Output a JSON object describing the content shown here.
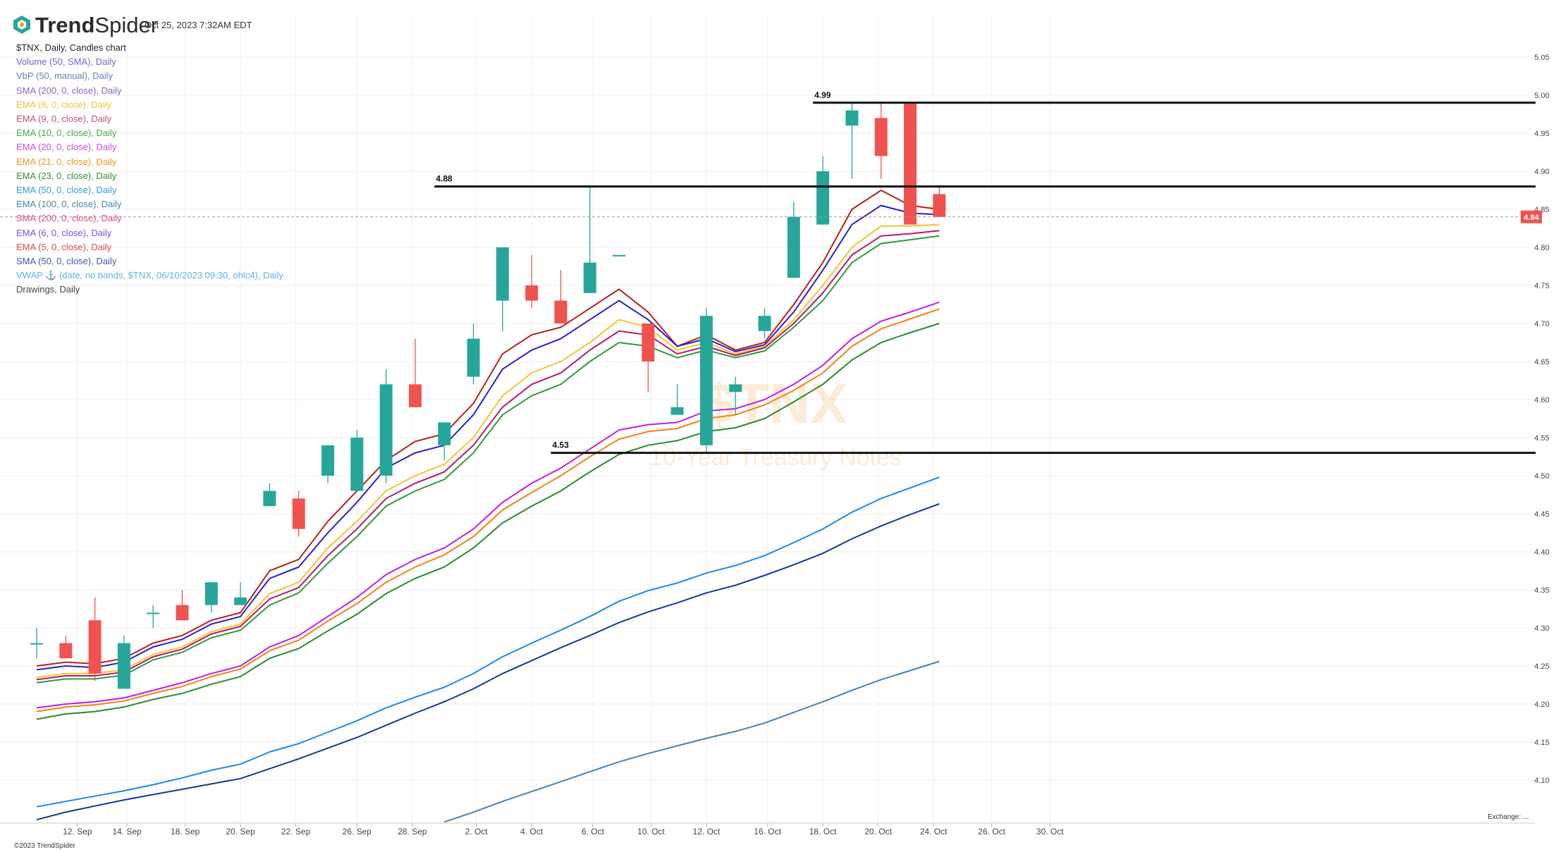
{
  "header": {
    "brand_bold": "Trend",
    "brand_regular": "Spider",
    "timestamp": "Oct 25, 2023 7:32AM EDT"
  },
  "legend": {
    "title": "$TNX, Daily, Candles chart",
    "items": [
      {
        "label": "Volume (50, SMA), Daily",
        "color": "#7b5bd6"
      },
      {
        "label": "VbP (50, manual), Daily",
        "color": "#6a7fb0"
      },
      {
        "label": "SMA (200, 0, close), Daily",
        "color": "#8a63b8"
      },
      {
        "label": "EMA (8, 0, close), Daily",
        "color": "#f2c43d"
      },
      {
        "label": "EMA (9, 0, close), Daily",
        "color": "#c0507a"
      },
      {
        "label": "EMA (10, 0, close), Daily",
        "color": "#4aa84a"
      },
      {
        "label": "EMA (20, 0, close), Daily",
        "color": "#c74fd6"
      },
      {
        "label": "EMA (21, 0, close), Daily",
        "color": "#f0941f"
      },
      {
        "label": "EMA (23, 0, close), Daily",
        "color": "#3a8a3a"
      },
      {
        "label": "EMA (50, 0, close), Daily",
        "color": "#2b9be3"
      },
      {
        "label": "EMA (100, 0, close), Daily",
        "color": "#4a86b0"
      },
      {
        "label": "SMA (200, 0, close), Daily",
        "color": "#d05080"
      },
      {
        "label": "EMA (6, 0, close), Daily",
        "color": "#7a4fd0"
      },
      {
        "label": "EMA (5, 0, close), Daily",
        "color": "#d0504a"
      },
      {
        "label": "SMA (50, 0, close), Daily",
        "color": "#3a5aa8"
      },
      {
        "label": "VWAP ⚓ (date, no bands, $TNX, 06/10/2023 09:30, ohlc4), Daily",
        "color": "#5ab4e0"
      },
      {
        "label": "Drawings, Daily",
        "color": "#444444"
      }
    ]
  },
  "watermark": {
    "symbol": "$TNX",
    "name": "10-Year Treasury Notes"
  },
  "footer": {
    "exchange": "Exchange: ...",
    "copyright": "©2023 TrendSpider"
  },
  "colors": {
    "up": "#26a69a",
    "down": "#ef5350",
    "current_price_bg": "#ef5350"
  },
  "chart_data": {
    "type": "candlestick",
    "symbol": "$TNX",
    "interval": "Daily",
    "ylim": [
      4.05,
      5.05
    ],
    "y_ticks": [
      "4.10",
      "4.15",
      "4.20",
      "4.25",
      "4.30",
      "4.35",
      "4.40",
      "4.45",
      "4.50",
      "4.55",
      "4.60",
      "4.65",
      "4.70",
      "4.75",
      "4.80",
      "4.85",
      "4.90",
      "4.95",
      "5.00",
      "5.05"
    ],
    "x_ticks": [
      "12. Sep",
      "14. Sep",
      "18. Sep",
      "20. Sep",
      "22. Sep",
      "26. Sep",
      "28. Sep",
      "2. Oct",
      "4. Oct",
      "6. Oct",
      "10. Oct",
      "12. Oct",
      "16. Oct",
      "18. Oct",
      "20. Oct",
      "24. Oct",
      "26. Oct",
      "30. Oct"
    ],
    "current_price": "4.84",
    "grid": true,
    "candles": [
      {
        "date": "11 Sep",
        "o": 4.28,
        "h": 4.3,
        "l": 4.26,
        "c": 4.28
      },
      {
        "date": "12 Sep",
        "o": 4.28,
        "h": 4.29,
        "l": 4.26,
        "c": 4.26
      },
      {
        "date": "13 Sep",
        "o": 4.31,
        "h": 4.34,
        "l": 4.23,
        "c": 4.24
      },
      {
        "date": "14 Sep",
        "o": 4.22,
        "h": 4.29,
        "l": 4.22,
        "c": 4.28
      },
      {
        "date": "15 Sep",
        "o": 4.32,
        "h": 4.33,
        "l": 4.3,
        "c": 4.32
      },
      {
        "date": "18 Sep",
        "o": 4.33,
        "h": 4.35,
        "l": 4.31,
        "c": 4.31
      },
      {
        "date": "19 Sep",
        "o": 4.33,
        "h": 4.36,
        "l": 4.32,
        "c": 4.36
      },
      {
        "date": "20 Sep",
        "o": 4.33,
        "h": 4.36,
        "l": 4.33,
        "c": 4.34
      },
      {
        "date": "21 Sep",
        "o": 4.46,
        "h": 4.49,
        "l": 4.46,
        "c": 4.48
      },
      {
        "date": "22 Sep",
        "o": 4.47,
        "h": 4.48,
        "l": 4.42,
        "c": 4.43
      },
      {
        "date": "25 Sep",
        "o": 4.5,
        "h": 4.54,
        "l": 4.49,
        "c": 4.54
      },
      {
        "date": "26 Sep",
        "o": 4.48,
        "h": 4.56,
        "l": 4.48,
        "c": 4.55
      },
      {
        "date": "27 Sep",
        "o": 4.5,
        "h": 4.64,
        "l": 4.49,
        "c": 4.62
      },
      {
        "date": "28 Sep",
        "o": 4.62,
        "h": 4.68,
        "l": 4.59,
        "c": 4.59
      },
      {
        "date": "29 Sep",
        "o": 4.54,
        "h": 4.57,
        "l": 4.52,
        "c": 4.57
      },
      {
        "date": "2 Oct",
        "o": 4.63,
        "h": 4.7,
        "l": 4.62,
        "c": 4.68
      },
      {
        "date": "3 Oct",
        "o": 4.73,
        "h": 4.8,
        "l": 4.69,
        "c": 4.8
      },
      {
        "date": "4 Oct",
        "o": 4.75,
        "h": 4.79,
        "l": 4.72,
        "c": 4.73
      },
      {
        "date": "5 Oct",
        "o": 4.73,
        "h": 4.77,
        "l": 4.7,
        "c": 4.7
      },
      {
        "date": "6 Oct",
        "o": 4.74,
        "h": 4.88,
        "l": 4.74,
        "c": 4.78
      },
      {
        "date": "9 Oct",
        "o": 4.79,
        "h": 4.79,
        "l": 4.79,
        "c": 4.79
      },
      {
        "date": "10 Oct",
        "o": 4.7,
        "h": 4.7,
        "l": 4.61,
        "c": 4.65
      },
      {
        "date": "11 Oct",
        "o": 4.58,
        "h": 4.62,
        "l": 4.58,
        "c": 4.59
      },
      {
        "date": "12 Oct",
        "o": 4.54,
        "h": 4.72,
        "l": 4.53,
        "c": 4.71
      },
      {
        "date": "13 Oct",
        "o": 4.61,
        "h": 4.63,
        "l": 4.58,
        "c": 4.62
      },
      {
        "date": "16 Oct",
        "o": 4.69,
        "h": 4.72,
        "l": 4.68,
        "c": 4.71
      },
      {
        "date": "17 Oct",
        "o": 4.76,
        "h": 4.86,
        "l": 4.76,
        "c": 4.84
      },
      {
        "date": "18 Oct",
        "o": 4.83,
        "h": 4.92,
        "l": 4.83,
        "c": 4.9
      },
      {
        "date": "19 Oct",
        "o": 4.96,
        "h": 4.99,
        "l": 4.89,
        "c": 4.98
      },
      {
        "date": "20 Oct",
        "o": 4.97,
        "h": 4.99,
        "l": 4.89,
        "c": 4.92
      },
      {
        "date": "23 Oct",
        "o": 4.99,
        "h": 4.99,
        "l": 4.83,
        "c": 4.83
      },
      {
        "date": "24 Oct",
        "o": 4.87,
        "h": 4.88,
        "l": 4.84,
        "c": 4.84
      }
    ],
    "horizontal_levels": [
      {
        "value": 4.99,
        "label": "4.99",
        "from": "18 Oct"
      },
      {
        "value": 4.88,
        "label": "4.88",
        "from": "29 Sep"
      },
      {
        "value": 4.53,
        "label": "4.53",
        "from": "5 Oct"
      }
    ],
    "series": [
      {
        "color": "#b5201c",
        "values": [
          4.25,
          4.255,
          4.253,
          4.26,
          4.28,
          4.29,
          4.31,
          4.32,
          4.375,
          4.39,
          4.44,
          4.48,
          4.52,
          4.545,
          4.555,
          4.595,
          4.66,
          4.685,
          4.695,
          4.72,
          4.745,
          4.715,
          4.67,
          4.685,
          4.665,
          4.675,
          4.725,
          4.78,
          4.85,
          4.875,
          4.855,
          4.85
        ]
      },
      {
        "color": "#2a21c9",
        "values": [
          4.245,
          4.25,
          4.248,
          4.255,
          4.275,
          4.285,
          4.305,
          4.315,
          4.365,
          4.38,
          4.425,
          4.465,
          4.51,
          4.53,
          4.54,
          4.58,
          4.64,
          4.665,
          4.68,
          4.705,
          4.73,
          4.705,
          4.67,
          4.68,
          4.663,
          4.672,
          4.715,
          4.77,
          4.83,
          4.855,
          4.845,
          4.843
        ]
      },
      {
        "color": "#f4c430",
        "values": [
          4.235,
          4.24,
          4.24,
          4.245,
          4.265,
          4.275,
          4.295,
          4.305,
          4.345,
          4.36,
          4.405,
          4.44,
          4.48,
          4.5,
          4.515,
          4.55,
          4.605,
          4.635,
          4.65,
          4.675,
          4.705,
          4.695,
          4.665,
          4.675,
          4.66,
          4.67,
          4.705,
          4.75,
          4.8,
          4.828,
          4.828,
          4.83
        ]
      },
      {
        "color": "#b51a6a",
        "values": [
          4.232,
          4.237,
          4.237,
          4.242,
          4.262,
          4.272,
          4.292,
          4.302,
          4.338,
          4.353,
          4.395,
          4.43,
          4.47,
          4.49,
          4.505,
          4.54,
          4.59,
          4.62,
          4.635,
          4.665,
          4.69,
          4.685,
          4.66,
          4.67,
          4.658,
          4.668,
          4.7,
          4.74,
          4.79,
          4.815,
          4.818,
          4.822
        ]
      },
      {
        "color": "#2e9a3e",
        "values": [
          4.228,
          4.233,
          4.233,
          4.238,
          4.258,
          4.268,
          4.287,
          4.297,
          4.33,
          4.346,
          4.385,
          4.42,
          4.46,
          4.48,
          4.495,
          4.53,
          4.58,
          4.605,
          4.62,
          4.65,
          4.675,
          4.67,
          4.655,
          4.665,
          4.655,
          4.664,
          4.695,
          4.73,
          4.78,
          4.805,
          4.81,
          4.815
        ]
      },
      {
        "color": "#c21ed9",
        "values": [
          4.195,
          4.2,
          4.203,
          4.208,
          4.218,
          4.228,
          4.24,
          4.25,
          4.275,
          4.29,
          4.315,
          4.34,
          4.37,
          4.39,
          4.405,
          4.43,
          4.465,
          4.49,
          4.51,
          4.535,
          4.56,
          4.567,
          4.57,
          4.585,
          4.588,
          4.6,
          4.62,
          4.645,
          4.68,
          4.703,
          4.715,
          4.728
        ]
      },
      {
        "color": "#f08218",
        "values": [
          4.19,
          4.196,
          4.199,
          4.204,
          4.214,
          4.223,
          4.236,
          4.246,
          4.27,
          4.284,
          4.309,
          4.332,
          4.36,
          4.38,
          4.396,
          4.42,
          4.455,
          4.478,
          4.5,
          4.525,
          4.548,
          4.558,
          4.562,
          4.575,
          4.58,
          4.593,
          4.612,
          4.635,
          4.67,
          4.693,
          4.706,
          4.719
        ]
      },
      {
        "color": "#2a8a32",
        "values": [
          4.18,
          4.187,
          4.19,
          4.196,
          4.206,
          4.214,
          4.226,
          4.236,
          4.26,
          4.273,
          4.296,
          4.318,
          4.345,
          4.365,
          4.38,
          4.405,
          4.438,
          4.46,
          4.48,
          4.505,
          4.528,
          4.54,
          4.546,
          4.558,
          4.563,
          4.575,
          4.597,
          4.62,
          4.652,
          4.675,
          4.688,
          4.7
        ]
      },
      {
        "color": "#1e88e5",
        "values": [
          4.065,
          4.072,
          4.079,
          4.086,
          4.094,
          4.103,
          4.113,
          4.121,
          4.137,
          4.148,
          4.163,
          4.178,
          4.195,
          4.209,
          4.222,
          4.24,
          4.262,
          4.28,
          4.297,
          4.315,
          4.335,
          4.349,
          4.359,
          4.372,
          4.382,
          4.395,
          4.412,
          4.43,
          4.452,
          4.47,
          4.484,
          4.498
        ]
      },
      {
        "color": "#123c8c",
        "values": [
          4.048,
          4.058,
          4.066,
          4.074,
          4.081,
          4.088,
          4.095,
          4.102,
          4.115,
          4.128,
          4.142,
          4.156,
          4.172,
          4.188,
          4.203,
          4.22,
          4.24,
          4.257,
          4.274,
          4.29,
          4.307,
          4.321,
          4.333,
          4.346,
          4.356,
          4.369,
          4.383,
          4.398,
          4.417,
          4.434,
          4.449,
          4.463
        ]
      },
      {
        "color": "#4682b4",
        "values": [
          null,
          null,
          null,
          null,
          null,
          null,
          null,
          null,
          null,
          null,
          null,
          null,
          null,
          null,
          4.045,
          4.058,
          4.072,
          4.085,
          4.098,
          4.111,
          4.124,
          4.135,
          4.145,
          4.155,
          4.164,
          4.175,
          4.189,
          4.203,
          4.218,
          4.232,
          4.244,
          4.256
        ]
      }
    ]
  }
}
